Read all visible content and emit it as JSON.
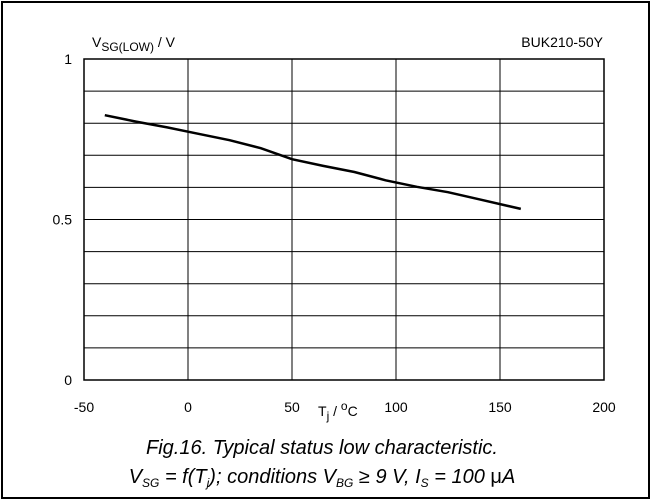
{
  "chart_data": {
    "type": "line",
    "ylabel_main": "V",
    "ylabel_sub": "SG(LOW)",
    "ylabel_suffix": " / V",
    "part_number": "BUK210-50Y",
    "xlabel_main": "T",
    "xlabel_sub": "j",
    "xlabel_mid": " / ",
    "xlabel_sup": "o",
    "xlabel_unit": "C",
    "xlim": [
      -50,
      200
    ],
    "ylim": [
      0,
      1
    ],
    "x_ticks": [
      "-50",
      "0",
      "50",
      "100",
      "150",
      "200"
    ],
    "y_ticks": [
      "0",
      "0.5",
      "1"
    ],
    "grid": true,
    "series": [
      {
        "x": [
          -40,
          -25,
          -10,
          5,
          20,
          35,
          50,
          65,
          80,
          95,
          110,
          125,
          140,
          160
        ],
        "y": [
          0.825,
          0.805,
          0.787,
          0.767,
          0.747,
          0.722,
          0.688,
          0.667,
          0.648,
          0.622,
          0.602,
          0.585,
          0.563,
          0.533
        ]
      }
    ]
  },
  "caption": {
    "line1": "Fig.16.   Typical status low characteristic.",
    "l2_a": "V",
    "l2_sg": "SG",
    "l2_b": " = f(T",
    "l2_j": "j",
    "l2_c": "); conditions V",
    "l2_bg": "BG",
    "l2_d": " ≥ 9 V, I",
    "l2_s": "S",
    "l2_e": " = 100 ",
    "l2_mu": "μ",
    "l2_f": "A"
  }
}
